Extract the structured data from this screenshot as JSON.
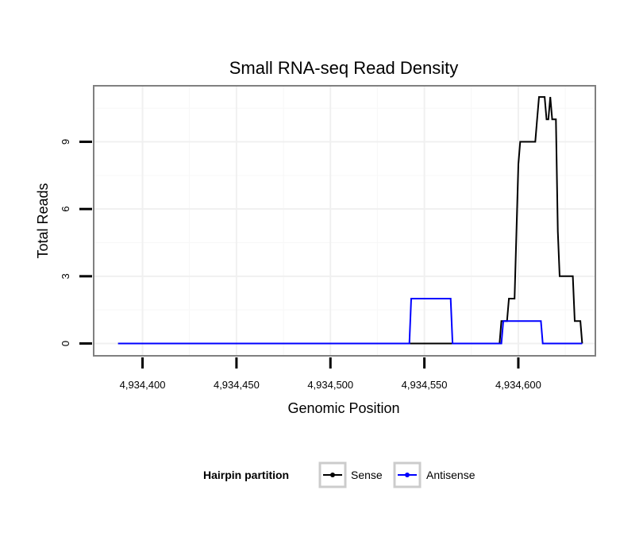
{
  "chart_data": {
    "type": "line",
    "title": "Small RNA-seq Read Density",
    "xlabel": "Genomic Position",
    "ylabel": "Total Reads",
    "xlim": [
      4934374,
      4934641
    ],
    "ylim": [
      -0.55,
      11.5
    ],
    "x_ticks": [
      {
        "value": 4934400,
        "label": "4,934,400"
      },
      {
        "value": 4934450,
        "label": "4,934,450"
      },
      {
        "value": 4934500,
        "label": "4,934,500"
      },
      {
        "value": 4934550,
        "label": "4,934,550"
      },
      {
        "value": 4934600,
        "label": "4,934,600"
      }
    ],
    "y_ticks": [
      {
        "value": 0,
        "label": "0"
      },
      {
        "value": 3,
        "label": "3"
      },
      {
        "value": 6,
        "label": "6"
      },
      {
        "value": 9,
        "label": "9"
      }
    ],
    "grid": true,
    "legend": {
      "title": "Hairpin partition",
      "placement": "bottom",
      "entries": [
        {
          "label": "Sense",
          "color": "#000000"
        },
        {
          "label": "Antisense",
          "color": "#0000ff"
        }
      ]
    },
    "series": [
      {
        "name": "Sense",
        "color": "#000000",
        "points": [
          [
            4934387,
            0
          ],
          [
            4934590,
            0
          ],
          [
            4934591,
            1
          ],
          [
            4934594,
            1
          ],
          [
            4934595,
            2
          ],
          [
            4934598,
            2
          ],
          [
            4934599,
            5
          ],
          [
            4934600,
            8
          ],
          [
            4934601,
            9
          ],
          [
            4934609,
            9
          ],
          [
            4934610,
            10
          ],
          [
            4934611,
            11
          ],
          [
            4934614,
            11
          ],
          [
            4934615,
            10
          ],
          [
            4934616,
            10
          ],
          [
            4934617,
            11
          ],
          [
            4934618,
            10
          ],
          [
            4934620,
            10
          ],
          [
            4934621,
            5
          ],
          [
            4934622,
            3
          ],
          [
            4934629,
            3
          ],
          [
            4934630,
            1
          ],
          [
            4934633,
            1
          ],
          [
            4934634,
            0
          ]
        ]
      },
      {
        "name": "Antisense",
        "color": "#0000ff",
        "points": [
          [
            4934387,
            0
          ],
          [
            4934542,
            0
          ],
          [
            4934543,
            2
          ],
          [
            4934564,
            2
          ],
          [
            4934565,
            0
          ],
          [
            4934591,
            0
          ],
          [
            4934592,
            1
          ],
          [
            4934612,
            1
          ],
          [
            4934613,
            0
          ],
          [
            4934634,
            0
          ]
        ]
      }
    ]
  }
}
